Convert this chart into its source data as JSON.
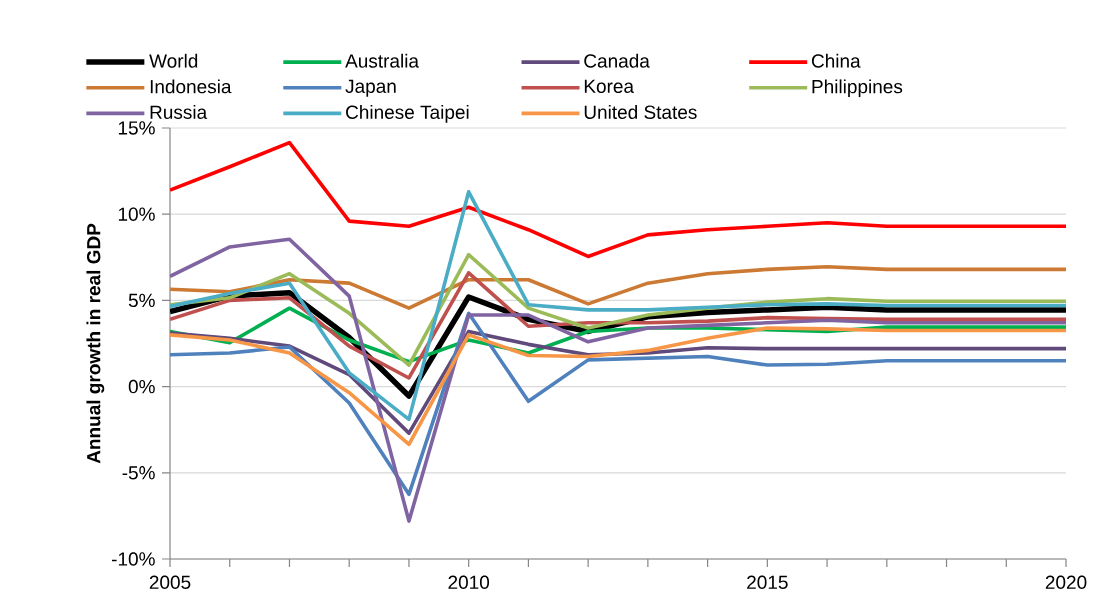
{
  "chart_data": {
    "type": "line",
    "ylabel": "Annual growth in real GDP",
    "x": [
      2005,
      2006,
      2007,
      2008,
      2009,
      2010,
      2011,
      2012,
      2013,
      2014,
      2015,
      2016,
      2017,
      2018,
      2019,
      2020
    ],
    "series": [
      {
        "name": "World",
        "color": "#000000",
        "values": [
          4.35,
          5.25,
          5.45,
          2.85,
          -0.55,
          5.2,
          3.9,
          3.2,
          4.05,
          4.3,
          4.45,
          4.6,
          4.45,
          4.45,
          4.45,
          4.45
        ]
      },
      {
        "name": "Australia",
        "color": "#00b050",
        "values": [
          3.2,
          2.55,
          4.55,
          2.7,
          1.45,
          2.7,
          1.95,
          3.2,
          3.4,
          3.4,
          3.3,
          3.2,
          3.45,
          3.45,
          3.45,
          3.45
        ]
      },
      {
        "name": "Canada",
        "color": "#604a7b",
        "values": [
          3.1,
          2.8,
          2.35,
          0.7,
          -2.7,
          3.2,
          2.45,
          1.85,
          1.95,
          2.25,
          2.2,
          2.2,
          2.2,
          2.2,
          2.2,
          2.2
        ]
      },
      {
        "name": "China",
        "color": "#ff0000",
        "values": [
          11.4,
          12.75,
          14.15,
          9.6,
          9.3,
          10.4,
          9.1,
          7.55,
          8.8,
          9.1,
          9.3,
          9.5,
          9.3,
          9.3,
          9.3,
          9.3
        ]
      },
      {
        "name": "Indonesia",
        "color": "#cc7a33",
        "values": [
          5.65,
          5.5,
          6.2,
          6.0,
          4.55,
          6.2,
          6.2,
          4.8,
          6.0,
          6.55,
          6.8,
          6.95,
          6.8,
          6.8,
          6.8,
          6.8
        ]
      },
      {
        "name": "Japan",
        "color": "#4f81bd",
        "values": [
          1.85,
          1.95,
          2.3,
          -0.95,
          -6.25,
          4.25,
          -0.85,
          1.55,
          1.65,
          1.75,
          1.25,
          1.3,
          1.5,
          1.5,
          1.5,
          1.5
        ]
      },
      {
        "name": "Korea",
        "color": "#c0504d",
        "values": [
          3.9,
          5.0,
          5.15,
          2.35,
          0.5,
          6.6,
          3.5,
          3.7,
          3.7,
          3.8,
          4.0,
          3.95,
          3.9,
          3.9,
          3.9,
          3.9
        ]
      },
      {
        "name": "Philippines",
        "color": "#9bbb59",
        "values": [
          4.75,
          5.15,
          6.55,
          4.25,
          1.25,
          7.65,
          4.55,
          3.4,
          4.15,
          4.55,
          4.9,
          5.1,
          4.95,
          4.95,
          4.95,
          4.95
        ]
      },
      {
        "name": "Russia",
        "color": "#8064a2",
        "values": [
          6.4,
          8.1,
          8.55,
          5.25,
          -7.8,
          4.15,
          4.15,
          2.6,
          3.4,
          3.55,
          3.7,
          3.85,
          3.7,
          3.7,
          3.7,
          3.7
        ]
      },
      {
        "name": "Chinese Taipei",
        "color": "#4bacc6",
        "values": [
          4.65,
          5.4,
          6.0,
          0.8,
          -1.9,
          11.3,
          4.75,
          4.45,
          4.45,
          4.6,
          4.75,
          4.8,
          4.7,
          4.7,
          4.7,
          4.7
        ]
      },
      {
        "name": "United States",
        "color": "#f79646",
        "values": [
          3.0,
          2.7,
          1.95,
          -0.35,
          -3.35,
          3.0,
          1.8,
          1.75,
          2.1,
          2.8,
          3.4,
          3.35,
          3.25,
          3.25,
          3.25,
          3.25
        ]
      }
    ],
    "xlim": [
      2005,
      2020
    ],
    "xticks": [
      2005,
      {
        "value": 2006,
        "label": null
      },
      {
        "value": 2007,
        "label": null
      },
      {
        "value": 2008,
        "label": null
      },
      {
        "value": 2009,
        "label": null
      },
      2010,
      {
        "value": 2011,
        "label": null
      },
      {
        "value": 2012,
        "label": null
      },
      {
        "value": 2013,
        "label": null
      },
      {
        "value": 2014,
        "label": null
      },
      2015,
      {
        "value": 2016,
        "label": null
      },
      {
        "value": 2017,
        "label": null
      },
      {
        "value": 2018,
        "label": null
      },
      {
        "value": 2019,
        "label": null
      },
      2020
    ],
    "ylim": [
      -10,
      15
    ],
    "yticks": [
      {
        "value": -10,
        "label": "-10%"
      },
      {
        "value": -5,
        "label": "-5%"
      },
      {
        "value": 0,
        "label": "0%"
      },
      {
        "value": 5,
        "label": "5%"
      },
      {
        "value": 10,
        "label": "10%"
      },
      {
        "value": 15,
        "label": "15%"
      }
    ],
    "grid": "y",
    "legend": "top",
    "marker": "none",
    "line_style": "solid"
  }
}
